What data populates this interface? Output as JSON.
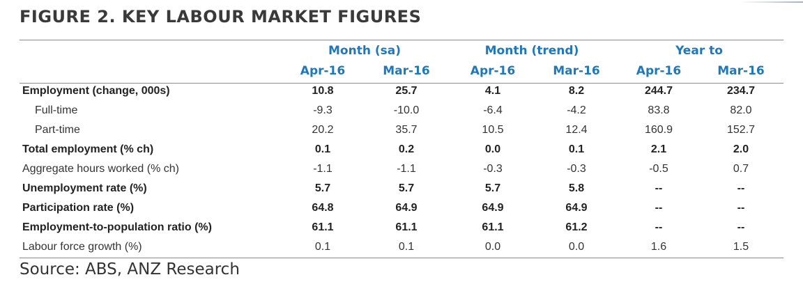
{
  "title": "FIGURE 2. KEY LABOUR MARKET FIGURES",
  "groups": [
    {
      "label": "Month (sa)"
    },
    {
      "label": "Month (trend)"
    },
    {
      "label": "Year to"
    }
  ],
  "periods": [
    "Apr-16",
    "Mar-16",
    "Apr-16",
    "Mar-16",
    "Apr-16",
    "Mar-16"
  ],
  "rows": [
    {
      "label": "Employment (change, 000s)",
      "style": "bold",
      "values": [
        "10.8",
        "25.7",
        "4.1",
        "8.2",
        "244.7",
        "234.7"
      ]
    },
    {
      "label": "Full-time",
      "style": "normal",
      "indent": true,
      "values": [
        "-9.3",
        "-10.0",
        "-6.4",
        "-4.2",
        "83.8",
        "82.0"
      ]
    },
    {
      "label": "Part-time",
      "style": "normal",
      "indent": true,
      "values": [
        "20.2",
        "35.7",
        "10.5",
        "12.4",
        "160.9",
        "152.7"
      ]
    },
    {
      "label": "Total employment (% ch)",
      "style": "bold",
      "values": [
        "0.1",
        "0.2",
        "0.0",
        "0.1",
        "2.1",
        "2.0"
      ]
    },
    {
      "label": "Aggregate hours worked (% ch)",
      "style": "normal",
      "values": [
        "-1.1",
        "-1.1",
        "-0.3",
        "-0.3",
        "-0.5",
        "0.7"
      ]
    },
    {
      "label": "Unemployment rate (%)",
      "style": "bold",
      "values": [
        "5.7",
        "5.7",
        "5.7",
        "5.8",
        "--",
        "--"
      ]
    },
    {
      "label": "Participation rate (%)",
      "style": "bold",
      "values": [
        "64.8",
        "64.9",
        "64.9",
        "64.9",
        "--",
        "--"
      ]
    },
    {
      "label": "Employment-to-population ratio (%)",
      "style": "bold",
      "values": [
        "61.1",
        "61.1",
        "61.1",
        "61.2",
        "--",
        "--"
      ]
    },
    {
      "label": "Labour force growth (%)",
      "style": "normal",
      "values": [
        "0.1",
        "0.1",
        "0.0",
        "0.0",
        "1.6",
        "1.5"
      ]
    }
  ],
  "source": "Source: ABS, ANZ Research",
  "colors": {
    "header_text": "#1f78b8",
    "title_text": "#3a3a3a",
    "rule": "#8a8a8a"
  }
}
